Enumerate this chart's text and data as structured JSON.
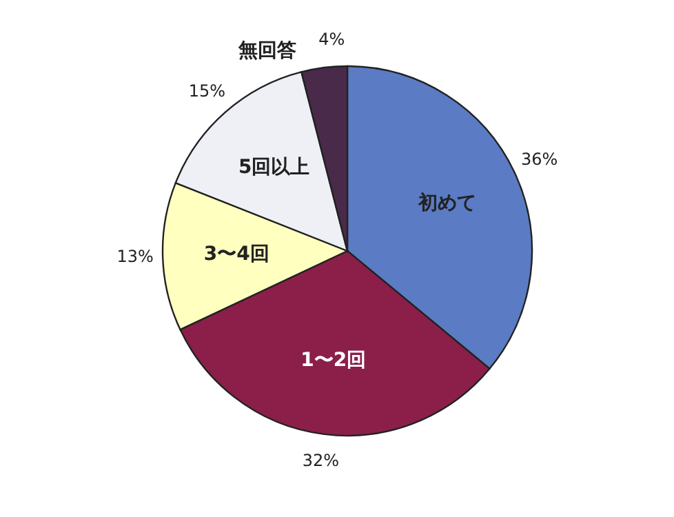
{
  "chart_data": {
    "type": "pie",
    "categories": [
      "初めて",
      "1〜2回",
      "3〜4回",
      "5回以上",
      "無回答"
    ],
    "values": [
      36,
      32,
      13,
      15,
      4
    ],
    "colors": [
      "#5b7cc4",
      "#8b1f4a",
      "#ffffc0",
      "#eef0f5",
      "#4a2a4a"
    ],
    "value_labels": [
      "36%",
      "32%",
      "13%",
      "15%",
      "4%"
    ]
  }
}
